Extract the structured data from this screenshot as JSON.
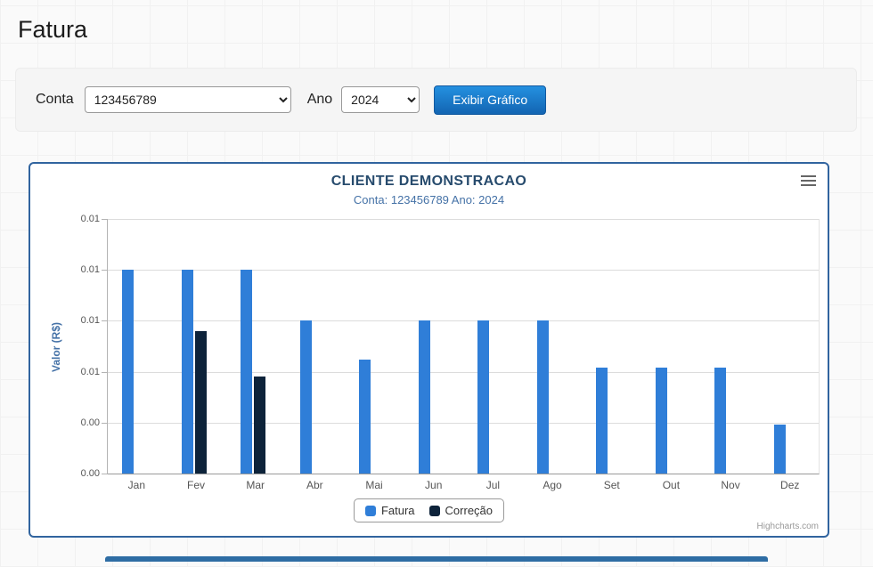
{
  "page": {
    "title": "Fatura"
  },
  "form": {
    "conta_label": "Conta",
    "conta_value": "123456789",
    "ano_label": "Ano",
    "ano_value": "2024",
    "submit_label": "Exibir Gráfico"
  },
  "chart": {
    "credit": "Highcharts.com"
  },
  "colors": {
    "fatura": "#2f7ed8",
    "correcao": "#0d233a",
    "panel_border": "#31649f",
    "title": "#274b6d",
    "subtitle": "#4572a7",
    "button": "#1a73c8"
  },
  "chart_data": {
    "type": "bar",
    "title": "CLIENTE DEMONSTRACAO",
    "subtitle": "Conta: 123456789 Ano: 2024",
    "xlabel": "",
    "ylabel": "Valor (R$)",
    "categories": [
      "Jan",
      "Fev",
      "Mar",
      "Abr",
      "Mai",
      "Jun",
      "Jul",
      "Ago",
      "Set",
      "Out",
      "Nov",
      "Dez"
    ],
    "series": [
      {
        "name": "Fatura",
        "color": "#2f7ed8",
        "values": [
          0.01,
          0.01,
          0.01,
          0.0075,
          0.0056,
          0.0075,
          0.0075,
          0.0075,
          0.0052,
          0.0052,
          0.0052,
          0.0024
        ]
      },
      {
        "name": "Correção",
        "color": "#0d233a",
        "values": [
          0,
          0.007,
          0.00475,
          0,
          0,
          0,
          0,
          0,
          0,
          0,
          0,
          0
        ]
      }
    ],
    "ylim": [
      0,
      0.0125
    ],
    "y_tick_step": 0.0025,
    "y_tick_labels_top_to_bottom": [
      "0.01",
      "0.01",
      "0.01",
      "0.01",
      "0.00",
      "0.00"
    ],
    "grid": true,
    "legend_position": "bottom"
  }
}
